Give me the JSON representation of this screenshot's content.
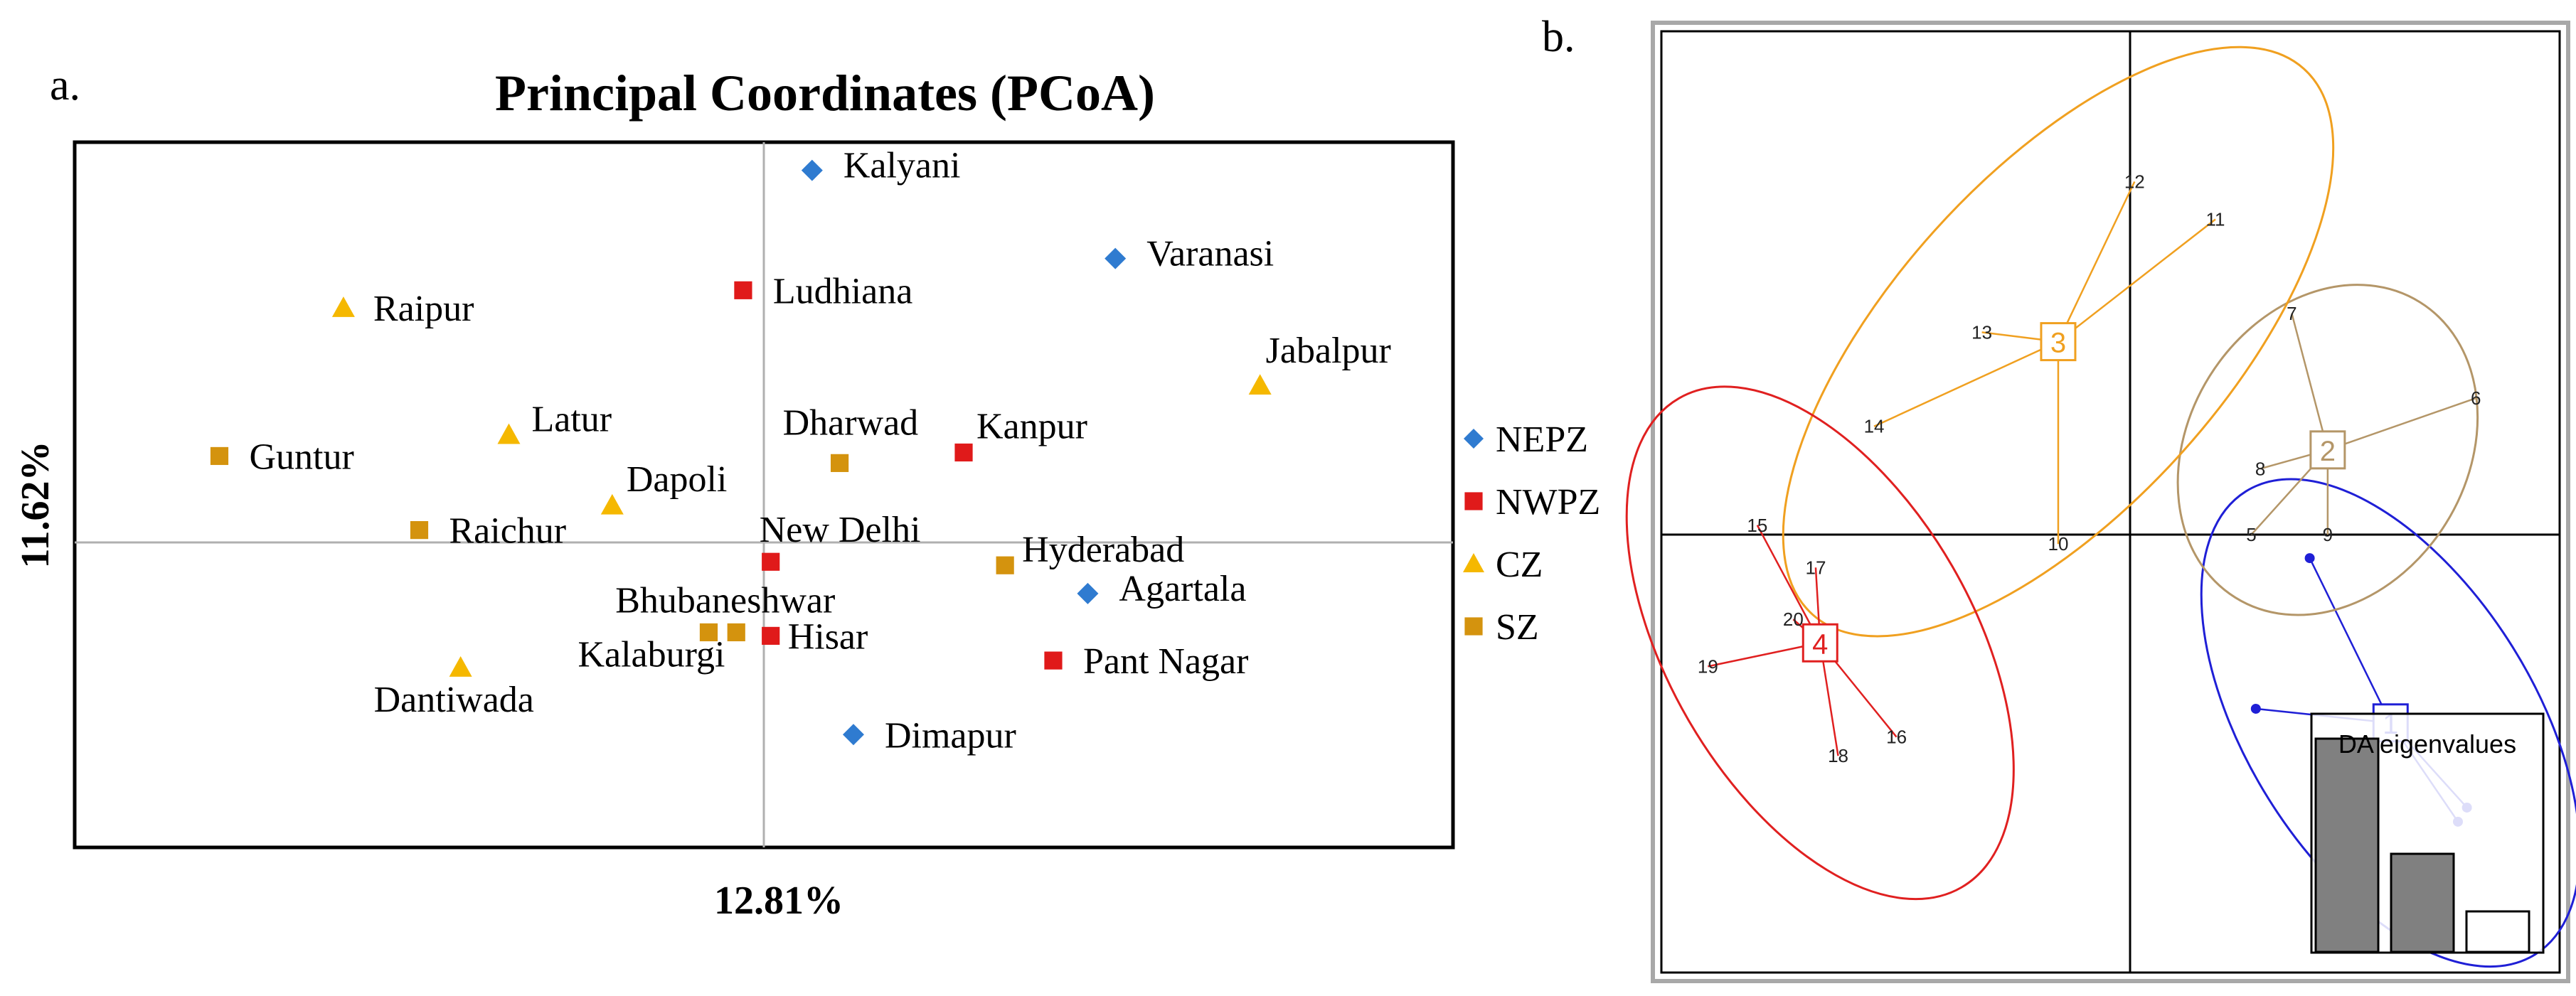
{
  "panel_labels": {
    "a": "a.",
    "b": "b."
  },
  "chart_data": [
    {
      "type": "scatter",
      "panel": "a",
      "title": "Principal Coordinates (PCoA)",
      "xlabel": "12.81%",
      "ylabel": "11.62%",
      "xlim": [
        -1.0,
        1.0
      ],
      "ylim": [
        -1.0,
        1.0
      ],
      "zero_lines": true,
      "legend_position": "right",
      "series": [
        {
          "name": "NEPZ",
          "marker": "diamond",
          "color": "#2f7bd0",
          "points": [
            {
              "label": "Kalyani",
              "x": 0.07,
              "y": 0.92
            },
            {
              "label": "Varanasi",
              "x": 0.51,
              "y": 0.67
            },
            {
              "label": "Agartala",
              "x": 0.47,
              "y": -0.28
            },
            {
              "label": "Dimapur",
              "x": 0.13,
              "y": -0.68
            }
          ]
        },
        {
          "name": "NWPZ",
          "marker": "square",
          "color": "#e01a1a",
          "points": [
            {
              "label": "Ludhiana",
              "x": -0.03,
              "y": 0.58
            },
            {
              "label": "Kanpur",
              "x": 0.29,
              "y": 0.12
            },
            {
              "label": "New Delhi",
              "x": 0.01,
              "y": -0.19
            },
            {
              "label": "Hisar",
              "x": 0.01,
              "y": -0.4
            },
            {
              "label": "Pant Nagar",
              "x": 0.42,
              "y": -0.47
            }
          ]
        },
        {
          "name": "CZ",
          "marker": "triangle",
          "color": "#f5b800",
          "points": [
            {
              "label": "Raipur",
              "x": -0.61,
              "y": 0.53
            },
            {
              "label": "Latur",
              "x": -0.37,
              "y": 0.17
            },
            {
              "label": "Dapoli",
              "x": -0.22,
              "y": -0.03
            },
            {
              "label": "Jabalpur",
              "x": 0.72,
              "y": 0.31
            },
            {
              "label": "Dantiwada",
              "x": -0.44,
              "y": -0.49
            }
          ]
        },
        {
          "name": "SZ",
          "marker": "square",
          "color": "#d4930e",
          "points": [
            {
              "label": "Guntur",
              "x": -0.79,
              "y": 0.11
            },
            {
              "label": "Raichur",
              "x": -0.5,
              "y": -0.1
            },
            {
              "label": "Dharwad",
              "x": 0.11,
              "y": 0.09
            },
            {
              "label": "Hyderabad",
              "x": 0.35,
              "y": -0.2
            },
            {
              "label": "Bhubaneshwar",
              "x": -0.04,
              "y": -0.39
            },
            {
              "label": "Kalaburgi",
              "x": -0.08,
              "y": -0.39
            }
          ]
        }
      ]
    },
    {
      "type": "scatter",
      "panel": "b",
      "subtype": "DAPC cluster scatter",
      "xlim": [
        -1.0,
        1.0
      ],
      "ylim": [
        -1.0,
        1.0
      ],
      "zero_lines": true,
      "clusters": [
        {
          "id": "1",
          "color": "#1f1fd6",
          "centroid": {
            "x": 0.58,
            "y": -0.4
          },
          "ellipse": {
            "rx": 0.32,
            "ry": 0.58,
            "rotation_deg": -32
          },
          "points": [
            {
              "label": "",
              "x": 0.4,
              "y": -0.05
            },
            {
              "label": "",
              "x": 0.28,
              "y": -0.37
            },
            {
              "label": "",
              "x": 0.75,
              "y": -0.58
            },
            {
              "label": "",
              "x": 0.73,
              "y": -0.61
            }
          ]
        },
        {
          "id": "2",
          "color": "#b49668",
          "centroid": {
            "x": 0.44,
            "y": 0.18
          },
          "ellipse": {
            "rx": 0.31,
            "ry": 0.37,
            "rotation_deg": 32
          },
          "points": [
            {
              "label": "7",
              "x": 0.36,
              "y": 0.47
            },
            {
              "label": "6",
              "x": 0.77,
              "y": 0.29
            },
            {
              "label": "8",
              "x": 0.29,
              "y": 0.14
            },
            {
              "label": "5",
              "x": 0.27,
              "y": 0.0
            },
            {
              "label": "9",
              "x": 0.44,
              "y": 0.0
            }
          ]
        },
        {
          "id": "3",
          "color": "#f0a020",
          "centroid": {
            "x": -0.16,
            "y": 0.41
          },
          "ellipse": {
            "rx": 0.37,
            "ry": 0.78,
            "rotation_deg": 42
          },
          "points": [
            {
              "label": "12",
              "x": 0.01,
              "y": 0.75
            },
            {
              "label": "11",
              "x": 0.19,
              "y": 0.67
            },
            {
              "label": "13",
              "x": -0.33,
              "y": 0.43
            },
            {
              "label": "14",
              "x": -0.57,
              "y": 0.23
            },
            {
              "label": "10",
              "x": -0.16,
              "y": -0.02
            }
          ]
        },
        {
          "id": "4",
          "color": "#e02020",
          "centroid": {
            "x": -0.69,
            "y": -0.23
          },
          "ellipse": {
            "rx": 0.34,
            "ry": 0.6,
            "rotation_deg": -30
          },
          "points": [
            {
              "label": "15",
              "x": -0.83,
              "y": 0.02
            },
            {
              "label": "17",
              "x": -0.7,
              "y": -0.07
            },
            {
              "label": "20",
              "x": -0.75,
              "y": -0.18
            },
            {
              "label": "19",
              "x": -0.94,
              "y": -0.28
            },
            {
              "label": "18",
              "x": -0.65,
              "y": -0.47
            },
            {
              "label": "16",
              "x": -0.52,
              "y": -0.43
            }
          ]
        }
      ],
      "eigenvalues_inset": {
        "title": "DA eigenvalues",
        "values": [
          1.0,
          0.46,
          0.19
        ],
        "colors": [
          "#808080",
          "#808080",
          "#ffffff"
        ]
      }
    }
  ]
}
